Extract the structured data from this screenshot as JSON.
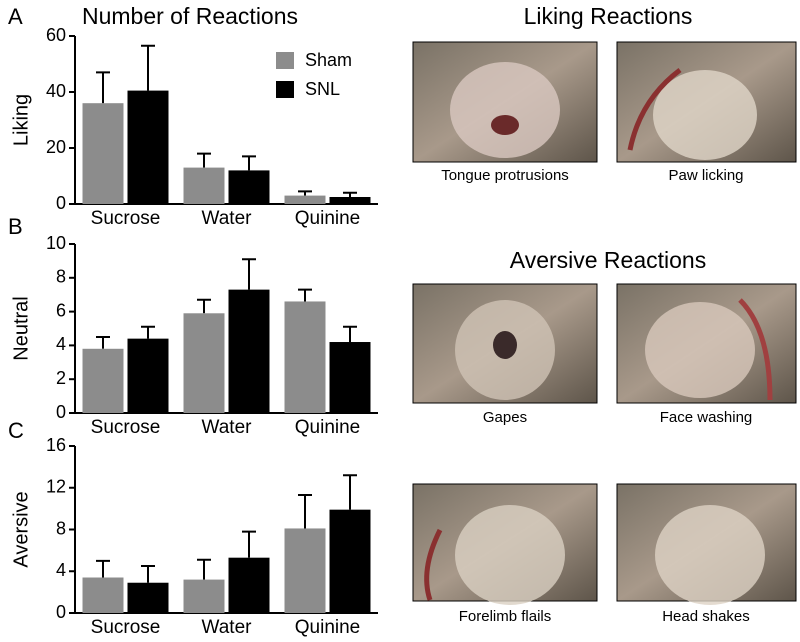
{
  "chart_data": [
    {
      "type": "bar",
      "panel": "A",
      "title": "Number of Reactions",
      "y_label": "Liking",
      "categories": [
        "Sucrose",
        "Water",
        "Quinine"
      ],
      "ylim": [
        0,
        60
      ],
      "yticks": [
        0,
        20,
        40,
        60
      ],
      "legend": "upper right",
      "series": [
        {
          "name": "Sham",
          "color": "#8c8c8c",
          "values": [
            36,
            13,
            3
          ],
          "errors": [
            11,
            5,
            1.5
          ]
        },
        {
          "name": "SNL",
          "color": "#000000",
          "values": [
            40.5,
            12,
            2.5
          ],
          "errors": [
            16,
            5,
            1.5
          ]
        }
      ]
    },
    {
      "type": "bar",
      "panel": "B",
      "y_label": "Neutral",
      "categories": [
        "Sucrose",
        "Water",
        "Quinine"
      ],
      "ylim": [
        0,
        10
      ],
      "yticks": [
        0,
        2,
        4,
        6,
        8,
        10
      ],
      "series": [
        {
          "color": "#8c8c8c",
          "values": [
            3.8,
            5.9,
            6.6
          ],
          "errors": [
            0.7,
            0.8,
            0.7
          ]
        },
        {
          "color": "#000000",
          "values": [
            4.4,
            7.3,
            4.2
          ],
          "errors": [
            0.7,
            1.8,
            0.9
          ]
        }
      ]
    },
    {
      "type": "bar",
      "panel": "C",
      "y_label": "Aversive",
      "categories": [
        "Sucrose",
        "Water",
        "Quinine"
      ],
      "ylim": [
        0,
        16
      ],
      "yticks": [
        0,
        4,
        8,
        12,
        16
      ],
      "series": [
        {
          "color": "#8c8c8c",
          "values": [
            3.4,
            3.2,
            8.1
          ],
          "errors": [
            1.6,
            1.9,
            3.2
          ]
        },
        {
          "color": "#000000",
          "values": [
            2.9,
            5.3,
            9.9
          ],
          "errors": [
            1.6,
            2.5,
            3.3
          ]
        }
      ]
    }
  ],
  "photos": [
    {
      "heading": "Liking Reactions",
      "captions": [
        "Tongue protrusions",
        "Paw licking"
      ]
    },
    {
      "heading": "Aversive Reactions",
      "captions": [
        "Gapes",
        "Face washing"
      ]
    },
    {
      "captions": [
        "Forelimb flails",
        "Head shakes"
      ]
    }
  ]
}
